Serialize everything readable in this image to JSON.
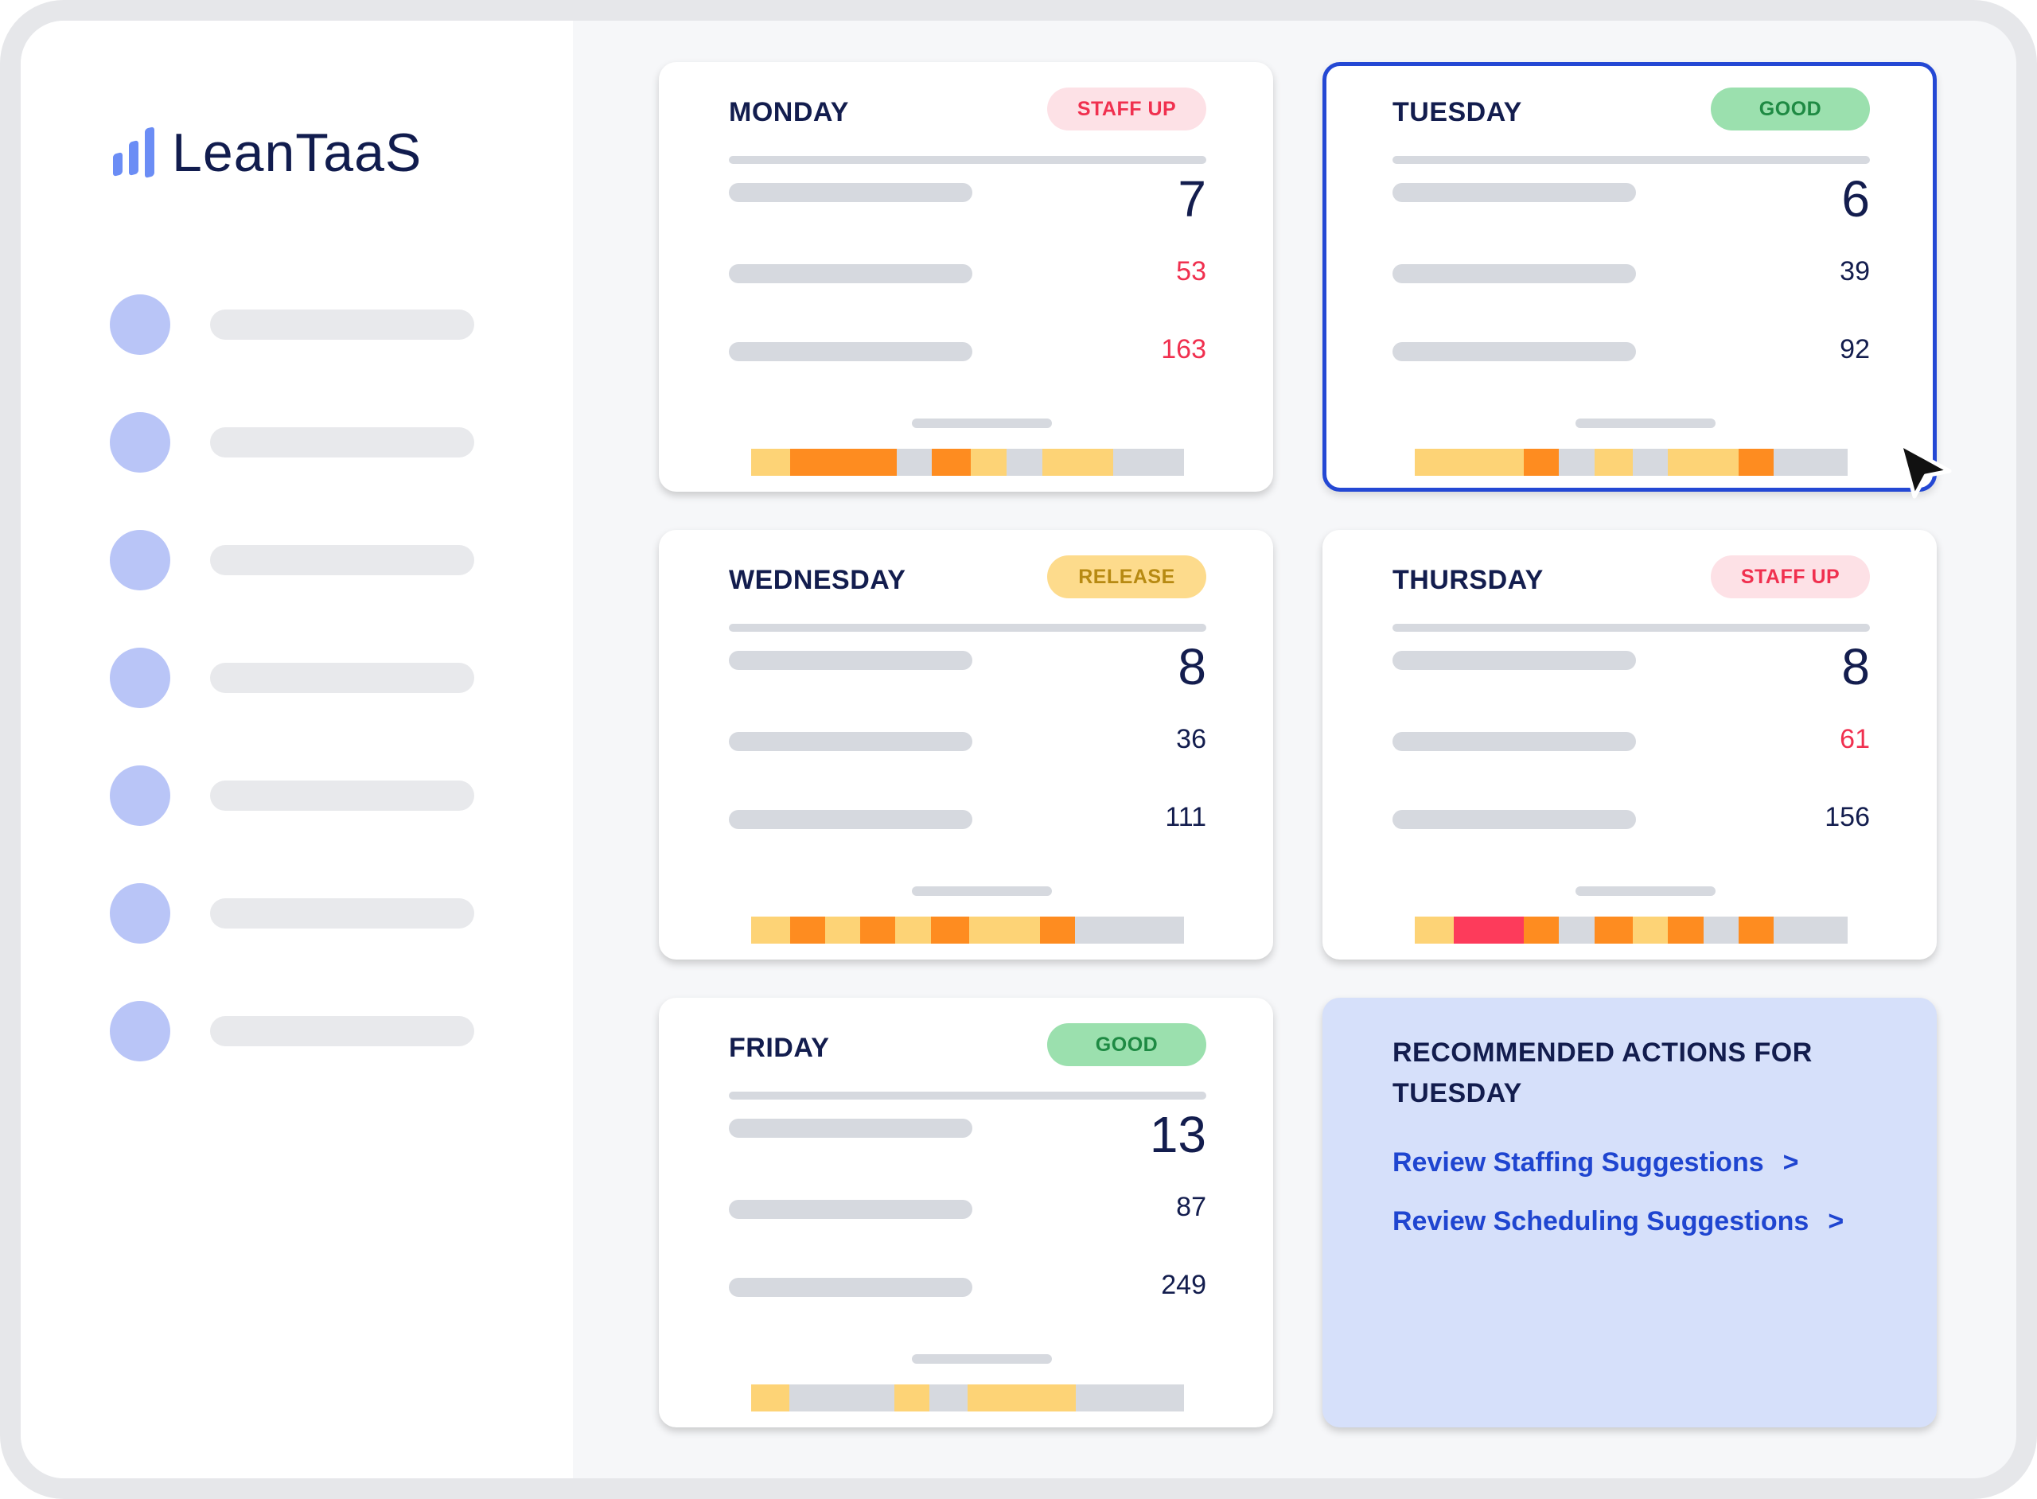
{
  "brand": {
    "name": "LeanTaaS",
    "icon": "bar-chart-logo-icon",
    "color": "#111c4e",
    "accent": "#6b8df5"
  },
  "sidebar": {
    "items": [
      {
        "icon": "nav-dot-icon"
      },
      {
        "icon": "nav-dot-icon"
      },
      {
        "icon": "nav-dot-icon"
      },
      {
        "icon": "nav-dot-icon"
      },
      {
        "icon": "nav-dot-icon"
      },
      {
        "icon": "nav-dot-icon"
      },
      {
        "icon": "nav-dot-icon"
      }
    ]
  },
  "colors": {
    "yellow": "#fdd376",
    "orange": "#fe8c20",
    "red": "#fd3b5b",
    "gray": "#d6d9df",
    "selected_border": "#2448d4"
  },
  "days": [
    {
      "day": "MONDAY",
      "badge": "STAFF UP",
      "status": "staff",
      "value_big": "7",
      "value_mid": "53",
      "value_low": "163",
      "mid_alert": true,
      "low_alert": true,
      "heat": [
        [
          "yellow",
          5.5
        ],
        [
          "orange",
          15
        ],
        [
          "gray",
          5
        ],
        [
          "orange",
          5.5
        ],
        [
          "yellow",
          5
        ],
        [
          "gray",
          5
        ],
        [
          "yellow",
          10
        ],
        [
          "gray",
          10
        ]
      ]
    },
    {
      "day": "TUESDAY",
      "badge": "GOOD",
      "status": "good",
      "selected": true,
      "value_big": "6",
      "value_mid": "39",
      "value_low": "92",
      "mid_alert": false,
      "low_alert": false,
      "heat": [
        [
          "yellow",
          15.5
        ],
        [
          "orange",
          5
        ],
        [
          "gray",
          5
        ],
        [
          "yellow",
          5.5
        ],
        [
          "gray",
          5
        ],
        [
          "yellow",
          10
        ],
        [
          "orange",
          5
        ],
        [
          "gray",
          10.5
        ]
      ]
    },
    {
      "day": "WEDNESDAY",
      "badge": "RELEASE",
      "status": "release",
      "value_big": "8",
      "value_mid": "36",
      "value_low": "111",
      "mid_alert": false,
      "low_alert": false,
      "heat": [
        [
          "yellow",
          5.5
        ],
        [
          "orange",
          5
        ],
        [
          "yellow",
          5
        ],
        [
          "orange",
          5
        ],
        [
          "yellow",
          5
        ],
        [
          "orange",
          5.5
        ],
        [
          "yellow",
          10
        ],
        [
          "orange",
          5
        ],
        [
          "gray",
          15.5
        ]
      ]
    },
    {
      "day": "THURSDAY",
      "badge": "STAFF UP",
      "status": "staff",
      "value_big": "8",
      "value_mid": "61",
      "value_low": "156",
      "mid_alert": true,
      "low_alert": false,
      "heat": [
        [
          "yellow",
          5.5
        ],
        [
          "red",
          10
        ],
        [
          "orange",
          5
        ],
        [
          "gray",
          5
        ],
        [
          "orange",
          5.5
        ],
        [
          "yellow",
          5
        ],
        [
          "orange",
          5
        ],
        [
          "gray",
          5
        ],
        [
          "orange",
          5
        ],
        [
          "gray",
          10.5
        ]
      ]
    },
    {
      "day": "FRIDAY",
      "badge": "GOOD",
      "status": "good",
      "value_big": "13",
      "value_mid": "87",
      "value_low": "249",
      "mid_alert": false,
      "low_alert": false,
      "heat": [
        [
          "yellow",
          5.5
        ],
        [
          "gray",
          15
        ],
        [
          "yellow",
          5
        ],
        [
          "gray",
          5.5
        ],
        [
          "yellow",
          15.5
        ],
        [
          "gray",
          15.5
        ]
      ]
    }
  ],
  "recommended": {
    "title": "RECOMMENDED ACTIONS FOR TUESDAY",
    "links": [
      {
        "label": "Review Staffing Suggestions",
        "arrow": ">"
      },
      {
        "label": "Review Scheduling Suggestions",
        "arrow": ">"
      }
    ]
  },
  "cursor": {
    "icon": "cursor-arrow-icon"
  }
}
